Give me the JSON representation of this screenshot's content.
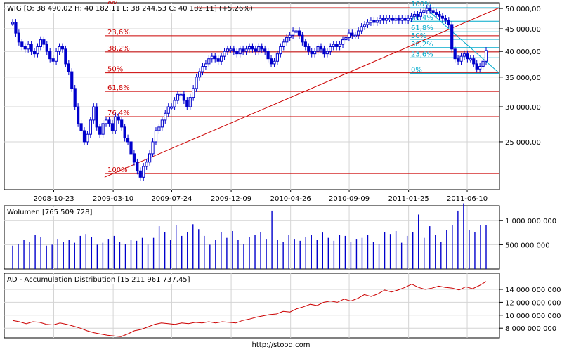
{
  "footer": {
    "url": "http://stooq.com"
  },
  "chart_data": [
    {
      "type": "candlestick",
      "title": "WIG [O: 38 490,02  H: 40 182,11  L: 38 244,53  C: 40 182,11] (+5,26%)",
      "x_tick_labels": [
        "2008-10-23",
        "2009-03-10",
        "2009-07-24",
        "2009-12-09",
        "2010-04-26",
        "2010-09-09",
        "2011-01-25",
        "2011-06-10"
      ],
      "x_start": "2008-06-30",
      "x_end": "2011-08-24",
      "y_ticks": [
        25000,
        30000,
        35000,
        40000,
        45000,
        50000
      ],
      "y_tick_labels": [
        "25 000,00",
        "30 000,00",
        "35 000,00",
        "40 000,00",
        "45 000,00",
        "50 000,00"
      ],
      "ylim": [
        19500,
        51500
      ],
      "y_scale": "log",
      "grid": true,
      "series": [
        {
          "values": [
            46500,
            44000,
            42000,
            41000,
            40500,
            41500,
            40000,
            39500,
            41000,
            42500,
            41500,
            40000,
            38500,
            38000,
            40000,
            41000,
            40500,
            37500,
            36000,
            33000,
            30000,
            27500,
            26500,
            25000,
            26000,
            28000,
            30000,
            27000,
            26000,
            27500,
            28000,
            27500,
            26500,
            28500,
            28000,
            27000,
            25500,
            25000,
            23500,
            22500,
            21500,
            20800,
            22000,
            22500,
            23500,
            25000,
            26500,
            27000,
            28000,
            29000,
            30000,
            30000,
            31000,
            32000,
            32000,
            31000,
            30000,
            31500,
            33000,
            35000,
            36000,
            37000,
            37500,
            38500,
            39000,
            38500,
            38000,
            39000,
            40000,
            40500,
            40500,
            40000,
            39500,
            40500,
            40000,
            40500,
            41000,
            40500,
            40000,
            41000,
            40500,
            40000,
            38500,
            37500,
            38000,
            39500,
            41000,
            42000,
            43000,
            43500,
            44500,
            44500,
            43500,
            42000,
            41000,
            40000,
            39500,
            40000,
            41000,
            40500,
            39500,
            40000,
            41000,
            41500,
            41000,
            41500,
            42500,
            43000,
            44000,
            43500,
            43500,
            44500,
            45500,
            46000,
            46500,
            47000,
            46500,
            47000,
            47500,
            47000,
            47500,
            47500,
            47000,
            47500,
            47000,
            47500,
            47000,
            47500,
            48000,
            48500,
            48000,
            49000,
            49500,
            50000,
            49500,
            49000,
            48500,
            48000,
            47500,
            47000,
            46000,
            40500,
            38500,
            38000,
            39000,
            39500,
            38500,
            38500,
            37500,
            36500,
            37000,
            38000,
            40182
          ]
        }
      ],
      "fibonacci_retracement_left": {
        "levels": [
          "0%",
          "23,6%",
          "38,2%",
          "50%",
          "61,8%",
          "76,4%",
          "100%"
        ],
        "values": [
          50200,
          43400,
          39900,
          35800,
          32500,
          28500,
          21200
        ]
      },
      "fibonacci_retracement_right": {
        "levels": [
          "100%",
          "76,4%",
          "61,8%",
          "50%",
          "38,2%",
          "23,6%",
          "0%"
        ],
        "values": [
          50200,
          46800,
          44300,
          42600,
          40800,
          38700,
          35700
        ]
      },
      "trend_line": {
        "from": [
          "2009-02-18",
          20800
        ],
        "to": [
          "2011-08-24",
          50200
        ]
      },
      "colors": {
        "candle": "#0000cc",
        "fib": "#cc0000",
        "fib_right": "#00aacc",
        "trend": "#cc0000"
      }
    },
    {
      "type": "bar",
      "title": "Wolumen [765 509 728]",
      "y_tick_labels": [
        "1 000 000 000",
        "500 000 000"
      ],
      "ylim": [
        0,
        1300000000
      ],
      "values": [
        480000000,
        520000000,
        600000000,
        550000000,
        700000000,
        650000000,
        480000000,
        500000000,
        620000000,
        560000000,
        600000000,
        540000000,
        680000000,
        720000000,
        650000000,
        500000000,
        540000000,
        620000000,
        680000000,
        560000000,
        520000000,
        600000000,
        580000000,
        640000000,
        500000000,
        640000000,
        880000000,
        760000000,
        600000000,
        900000000,
        680000000,
        760000000,
        920000000,
        820000000,
        680000000,
        500000000,
        600000000,
        760000000,
        640000000,
        780000000,
        600000000,
        520000000,
        650000000,
        700000000,
        760000000,
        620000000,
        1200000000,
        600000000,
        560000000,
        700000000,
        620000000,
        580000000,
        660000000,
        700000000,
        600000000,
        750000000,
        640000000,
        580000000,
        700000000,
        680000000,
        560000000,
        620000000,
        640000000,
        700000000,
        560000000,
        520000000,
        760000000,
        720000000,
        780000000,
        540000000,
        680000000,
        760000000,
        1120000000,
        640000000,
        880000000,
        700000000,
        560000000,
        800000000,
        900000000,
        1200000000,
        1350000000,
        800000000,
        760000000,
        900000000,
        900000000
      ]
    },
    {
      "type": "line",
      "title": "AD - Accumulation Distribution [15 211 961 737,45]",
      "y_tick_labels": [
        "14 000 000 000",
        "12 000 000 000",
        "10 000 000 000",
        "8 000 000 000"
      ],
      "ylim": [
        6500000000,
        16500000000
      ],
      "values": [
        9200000000,
        9000000000,
        8700000000,
        9000000000,
        8900000000,
        8600000000,
        8500000000,
        8800000000,
        8600000000,
        8300000000,
        8000000000,
        7600000000,
        7300000000,
        7100000000,
        6900000000,
        6800000000,
        6700000000,
        7100000000,
        7600000000,
        7800000000,
        8200000000,
        8600000000,
        8800000000,
        8700000000,
        8600000000,
        8800000000,
        8700000000,
        8900000000,
        8800000000,
        9000000000,
        8800000000,
        9000000000,
        8900000000,
        8800000000,
        9200000000,
        9400000000,
        9700000000,
        9900000000,
        10100000000,
        10200000000,
        10600000000,
        10500000000,
        11000000000,
        11300000000,
        11700000000,
        11500000000,
        12000000000,
        12200000000,
        12000000000,
        12500000000,
        12200000000,
        12600000000,
        13200000000,
        12900000000,
        13300000000,
        13900000000,
        13600000000,
        13900000000,
        14300000000,
        14800000000,
        14300000000,
        14000000000,
        14200000000,
        14500000000,
        14300000000,
        14200000000,
        13900000000,
        14400000000,
        14100000000,
        14600000000,
        15212000000
      ]
    }
  ]
}
